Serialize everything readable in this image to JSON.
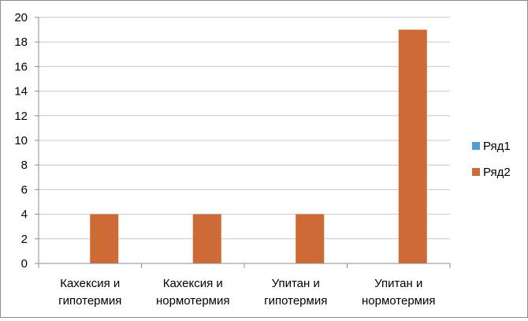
{
  "chart_data": {
    "type": "bar",
    "categories": [
      [
        "Кахексия и",
        "гипотермия"
      ],
      [
        "Кахексия и",
        "нормотермия"
      ],
      [
        "Упитан и",
        "гипотермия"
      ],
      [
        "Упитан и",
        "нормотермия"
      ]
    ],
    "series": [
      {
        "name": "Ряд1",
        "values": [
          0,
          0,
          0,
          0
        ],
        "color": "#4f9fd6"
      },
      {
        "name": "Ряд2",
        "values": [
          4,
          4,
          4,
          19
        ],
        "color": "#cd6a35"
      }
    ],
    "ylim": [
      0,
      20
    ],
    "yticks": [
      "0",
      "2",
      "4",
      "6",
      "8",
      "10",
      "12",
      "14",
      "16",
      "18",
      "20"
    ],
    "grid": true,
    "legend_position": "right",
    "grid_color": "#c8c8c8",
    "axis_color": "#8c8c8c"
  }
}
